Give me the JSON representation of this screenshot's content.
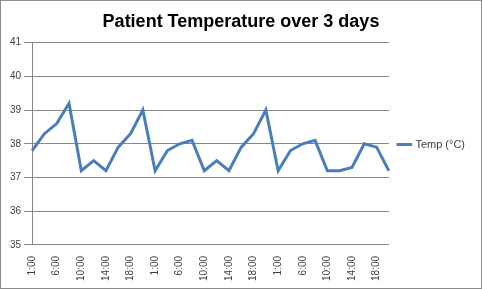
{
  "chart_data": {
    "type": "line",
    "title": "Patient Temperature over 3 days",
    "categories": [
      "1:00",
      null,
      "6:00",
      null,
      "10:00",
      null,
      "14:00",
      null,
      "18:00",
      null,
      "1:00",
      null,
      "6:00",
      null,
      "10:00",
      null,
      "14:00",
      null,
      "18:00",
      null,
      "1:00",
      null,
      "6:00",
      null,
      "10:00",
      null,
      "14:00",
      null,
      "18:00",
      null
    ],
    "series": [
      {
        "name": "Temp (°C)",
        "color": "#4a7ebb",
        "values": [
          37.8,
          38.3,
          38.6,
          39.2,
          37.2,
          37.5,
          37.2,
          37.9,
          38.3,
          39.0,
          37.2,
          37.8,
          38.0,
          38.1,
          37.2,
          37.5,
          37.2,
          37.9,
          38.3,
          39.0,
          37.2,
          37.8,
          38.0,
          38.1,
          37.2,
          37.2,
          37.3,
          38.0,
          37.9,
          37.2
        ]
      }
    ],
    "ylim": [
      35,
      41
    ],
    "yticks": [
      35,
      36,
      37,
      38,
      39,
      40,
      41
    ],
    "grid": true,
    "legend": "right"
  }
}
